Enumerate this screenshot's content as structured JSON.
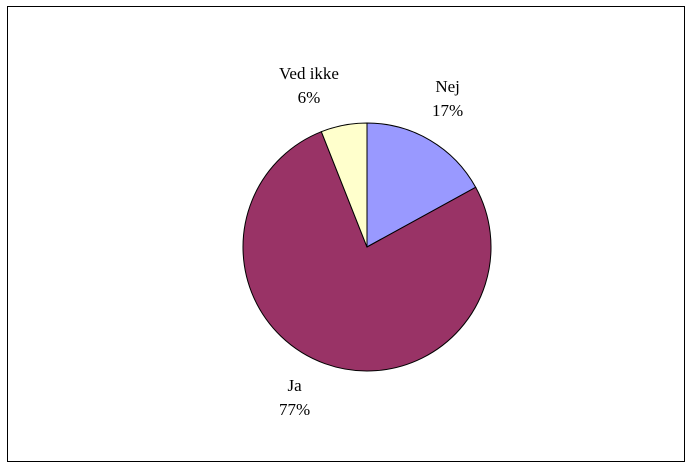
{
  "chart_data": {
    "type": "pie",
    "title": "",
    "start_angle_deg": 0,
    "direction": "clockwise",
    "slices": [
      {
        "label": "Nej",
        "value": 17,
        "value_label": "17%",
        "color": "#9999FF"
      },
      {
        "label": "Ja",
        "value": 77,
        "value_label": "77%",
        "color": "#993366"
      },
      {
        "label": "Ved ikke",
        "value": 6,
        "value_label": "6%",
        "color": "#FFFFCC"
      }
    ],
    "legend": "none",
    "outline_color": "#000000"
  }
}
